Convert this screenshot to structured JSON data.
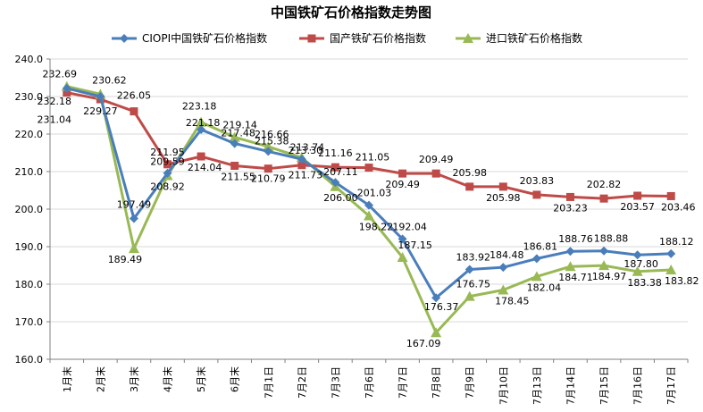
{
  "chart_data": {
    "type": "line",
    "title": "中国铁矿石价格指数走势图",
    "categories": [
      "1月末",
      "2月末",
      "3月末",
      "4月末",
      "5月末",
      "6月末",
      "7月1日",
      "7月2日",
      "7月3日",
      "7月6日",
      "7月7日",
      "7月8日",
      "7月9日",
      "7月10日",
      "7月13日",
      "7月14日",
      "7月15日",
      "7月16日",
      "7月17日"
    ],
    "ylim": [
      160,
      240
    ],
    "yticks": [
      "160.0",
      "170.0",
      "180.0",
      "190.0",
      "200.0",
      "210.0",
      "220.0",
      "230.0",
      "240.0"
    ],
    "legend_position": "top",
    "series": [
      {
        "name": "CIOPI中国铁矿石价格指数",
        "color": "#4a7ebb",
        "marker": "diamond",
        "values": [
          232.18,
          230.0,
          197.49,
          209.59,
          221.18,
          217.48,
          215.38,
          213.3,
          207.11,
          201.03,
          192.04,
          176.37,
          183.92,
          184.48,
          186.81,
          188.76,
          188.88,
          187.8,
          188.12
        ],
        "labels": [
          "232.18",
          "",
          "197.49",
          "209.59",
          "221.18",
          "217.48",
          "215.38",
          "213.30",
          "207.11",
          "201.03",
          "192.04",
          "176.37",
          "183.92",
          "184.48",
          "186.81",
          "188.76",
          "188.88",
          "187.80",
          "188.12"
        ]
      },
      {
        "name": "国产铁矿石价格指数",
        "color": "#be4b48",
        "marker": "square",
        "values": [
          231.04,
          229.27,
          226.05,
          211.95,
          214.04,
          211.55,
          210.79,
          211.73,
          211.16,
          211.05,
          209.49,
          209.49,
          205.98,
          205.98,
          203.83,
          203.23,
          202.82,
          203.57,
          203.46
        ],
        "labels": [
          "231.04",
          "229.27",
          "226.05",
          "211.95",
          "214.04",
          "211.55",
          "210.79",
          "211.73",
          "211.16",
          "211.05",
          "209.49",
          "209.49",
          "205.98",
          "205.98",
          "203.83",
          "203.23",
          "202.82",
          "203.57",
          "203.46"
        ]
      },
      {
        "name": "进口铁矿石价格指数",
        "color": "#98b954",
        "marker": "triangle",
        "values": [
          232.69,
          230.62,
          189.49,
          208.92,
          223.18,
          219.14,
          216.66,
          213.74,
          206.0,
          198.22,
          187.15,
          167.09,
          176.75,
          178.45,
          182.04,
          184.71,
          184.97,
          183.38,
          183.82
        ],
        "labels": [
          "232.69",
          "230.62",
          "189.49",
          "208.92",
          "223.18",
          "219.14",
          "216.66",
          "213.74",
          "206.00",
          "198.22",
          "187.15",
          "167.09",
          "176.75",
          "178.45",
          "182.04",
          "184.71",
          "184.97",
          "183.38",
          "183.82"
        ]
      }
    ]
  }
}
